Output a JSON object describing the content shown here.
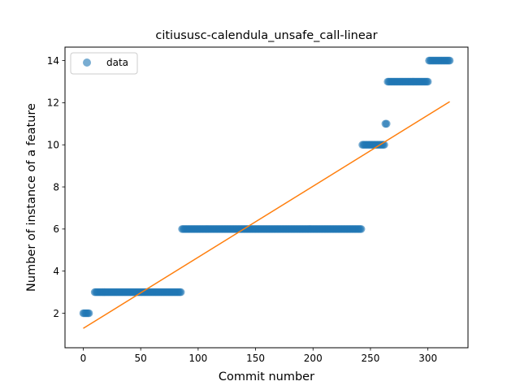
{
  "chart_data": {
    "type": "scatter",
    "title": "citiususc-calendula_unsafe_call-linear",
    "xlabel": "Commit number",
    "ylabel": "Number of instance of a feature",
    "xlim": [
      -15.9,
      334.9
    ],
    "ylim": [
      0.36,
      14.64
    ],
    "xticks": [
      0,
      50,
      100,
      150,
      200,
      250,
      300
    ],
    "yticks": [
      2,
      4,
      6,
      8,
      10,
      12,
      14
    ],
    "legend": {
      "position": "top-left",
      "entries": [
        "data"
      ]
    },
    "grid": false,
    "series": [
      {
        "name": "data",
        "kind": "points",
        "color": "#1f77b4",
        "segments": [
          {
            "x_start": 0,
            "x_end": 5,
            "y": 2
          },
          {
            "x_start": 10,
            "x_end": 85,
            "y": 3
          },
          {
            "x_start": 86,
            "x_end": 242,
            "y": 6
          },
          {
            "x_start": 243,
            "x_end": 262,
            "y": 10
          },
          {
            "x_start": 263,
            "x_end": 264,
            "y": 11
          },
          {
            "x_start": 265,
            "x_end": 300,
            "y": 13
          },
          {
            "x_start": 301,
            "x_end": 319,
            "y": 14
          }
        ]
      },
      {
        "kind": "line",
        "color": "#ff7f0e",
        "x": [
          0,
          319
        ],
        "y": [
          1.28,
          12.05
        ]
      }
    ]
  }
}
